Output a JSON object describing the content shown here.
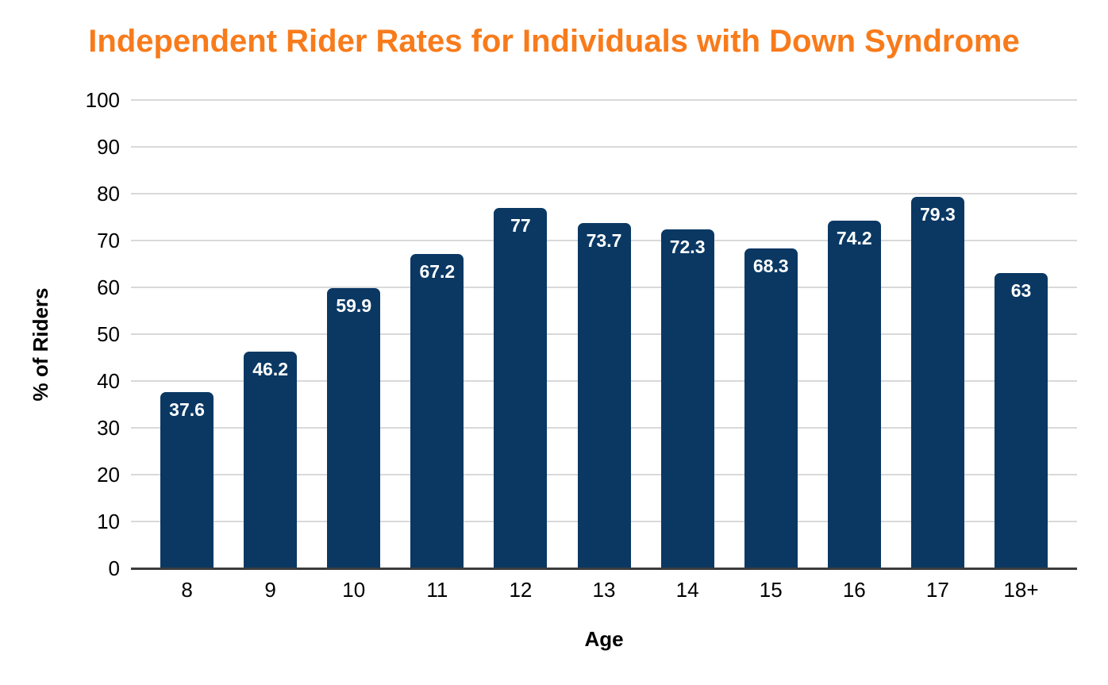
{
  "title": "Independent Rider Rates for Individuals with Down Syndrome",
  "chart_data": {
    "type": "bar",
    "title": "Independent Rider Rates for Individuals with Down Syndrome",
    "categories": [
      "8",
      "9",
      "10",
      "11",
      "12",
      "13",
      "14",
      "15",
      "16",
      "17",
      "18+"
    ],
    "values": [
      37.6,
      46.2,
      59.9,
      67.2,
      77,
      73.7,
      72.3,
      68.3,
      74.2,
      79.3,
      63
    ],
    "value_labels": [
      "37.6",
      "46.2",
      "59.9",
      "67.2",
      "77",
      "73.7",
      "72.3",
      "68.3",
      "74.2",
      "79.3",
      "63"
    ],
    "xlabel": "Age",
    "ylabel": "% of Riders",
    "ylim": [
      0,
      100
    ],
    "ytick_interval": 10,
    "yticks": [
      0,
      10,
      20,
      30,
      40,
      50,
      60,
      70,
      80,
      90,
      100
    ],
    "grid": true,
    "legend": "none",
    "colors": {
      "bar": "#0A3863",
      "title": "#F87B1B",
      "gridline": "#D9D9D9",
      "axis_line": "#3C3C3C",
      "value_label": "#FFFFFF",
      "tick_label": "#000000"
    }
  }
}
